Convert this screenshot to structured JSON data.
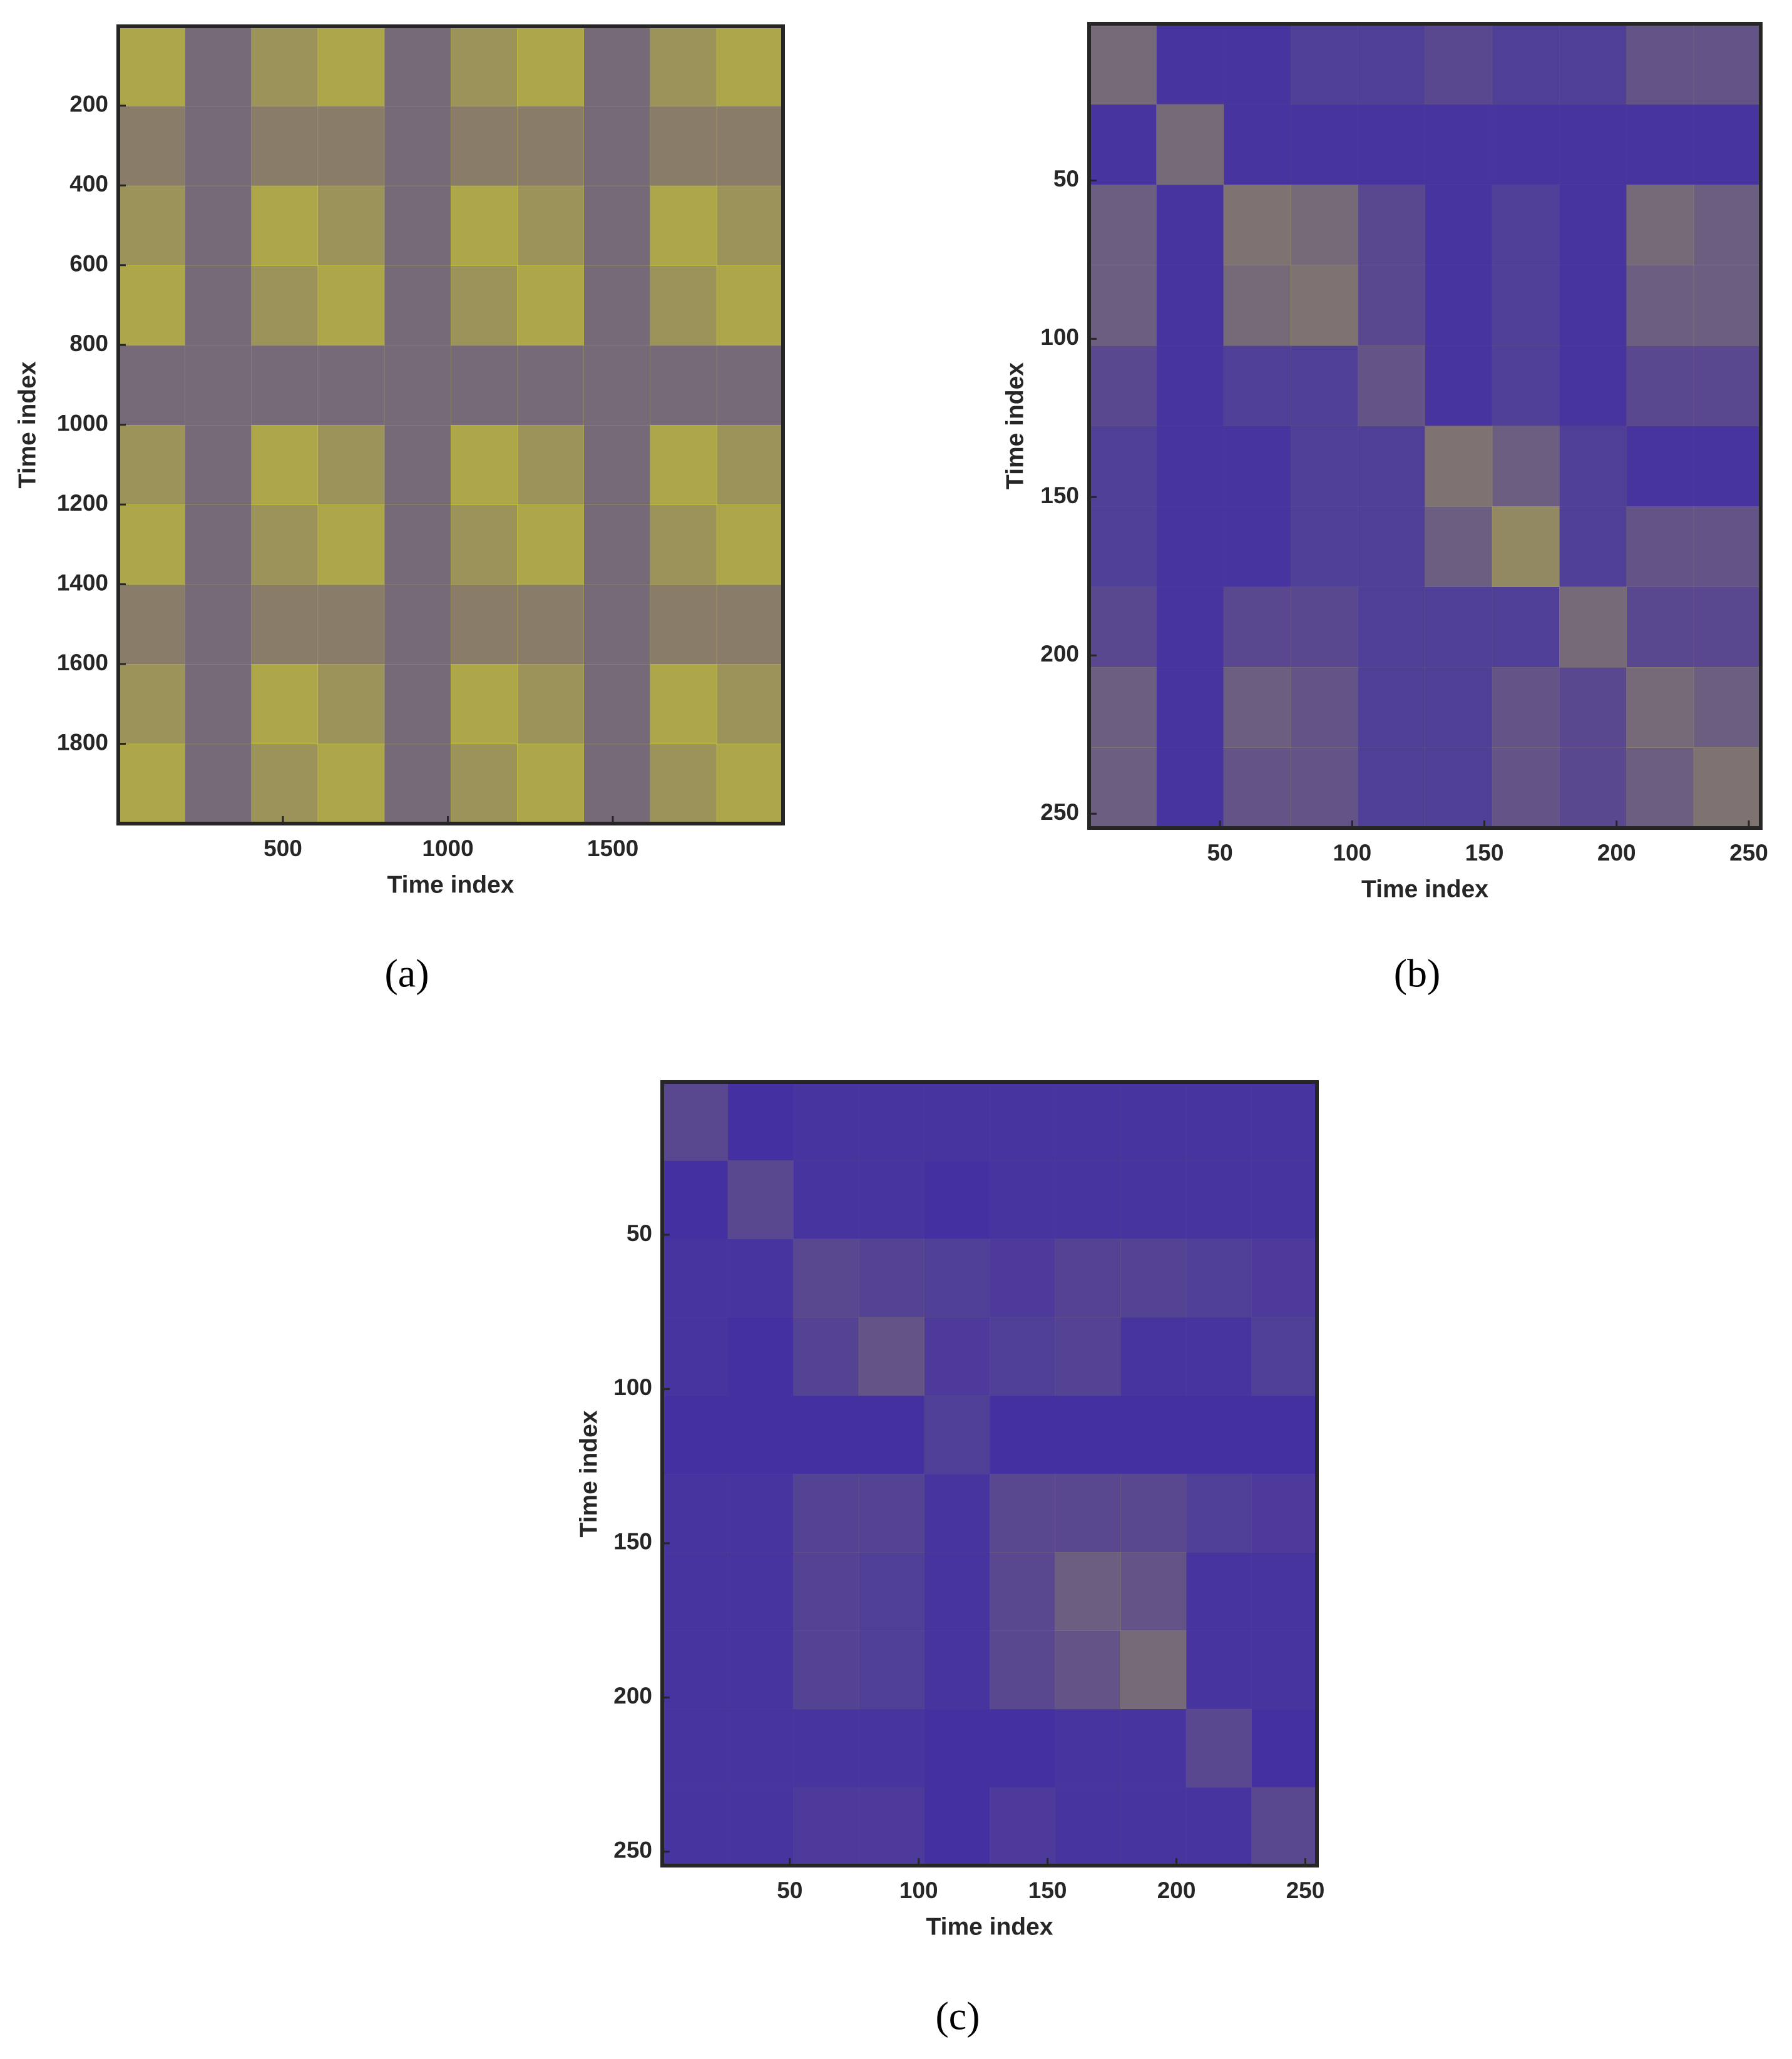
{
  "chart_data": [
    {
      "type": "recurrence",
      "label": "(a)",
      "xlabel": "Time index",
      "ylabel": "Time index",
      "xlim": [
        1,
        2016
      ],
      "ylim": [
        1,
        2000
      ],
      "y_direction": "reverse",
      "xticks": [
        500,
        1000,
        1500
      ],
      "yticks": [
        200,
        400,
        600,
        800,
        1000,
        1200,
        1400,
        1600,
        1800
      ],
      "background": "#3e2aa6",
      "color": "#f9fb0e",
      "values": [
        [
          0.6,
          0.3,
          0.5,
          0.6,
          0.3,
          0.5,
          0.6,
          0.3,
          0.5,
          0.6
        ],
        [
          0.4,
          0.3,
          0.4,
          0.4,
          0.3,
          0.4,
          0.4,
          0.3,
          0.4,
          0.4
        ],
        [
          0.5,
          0.3,
          0.6,
          0.5,
          0.3,
          0.6,
          0.5,
          0.3,
          0.6,
          0.5
        ],
        [
          0.6,
          0.3,
          0.5,
          0.6,
          0.3,
          0.5,
          0.6,
          0.3,
          0.5,
          0.6
        ],
        [
          0.3,
          0.3,
          0.3,
          0.3,
          0.3,
          0.3,
          0.3,
          0.3,
          0.3,
          0.3
        ],
        [
          0.5,
          0.3,
          0.6,
          0.5,
          0.3,
          0.6,
          0.5,
          0.3,
          0.6,
          0.5
        ],
        [
          0.6,
          0.3,
          0.5,
          0.6,
          0.3,
          0.5,
          0.6,
          0.3,
          0.5,
          0.6
        ],
        [
          0.4,
          0.3,
          0.4,
          0.4,
          0.3,
          0.4,
          0.4,
          0.3,
          0.4,
          0.4
        ],
        [
          0.5,
          0.3,
          0.6,
          0.5,
          0.3,
          0.6,
          0.5,
          0.3,
          0.6,
          0.5
        ],
        [
          0.6,
          0.3,
          0.5,
          0.6,
          0.3,
          0.5,
          0.6,
          0.3,
          0.5,
          0.6
        ]
      ]
    },
    {
      "type": "recurrence",
      "label": "(b)",
      "xlabel": "Time index",
      "ylabel": "Time index",
      "xlim": [
        0.5,
        254.5
      ],
      "ylim": [
        0.5,
        254.5
      ],
      "y_direction": "reverse",
      "xticks": [
        50,
        100,
        150,
        200,
        250
      ],
      "yticks": [
        50,
        100,
        150,
        200,
        250
      ],
      "background": "#3e2aa6",
      "color": "#f9fb0e",
      "values": [
        [
          0.3,
          0.05,
          0.05,
          0.1,
          0.1,
          0.15,
          0.1,
          0.1,
          0.2,
          0.2
        ],
        [
          0.05,
          0.3,
          0.05,
          0.05,
          0.05,
          0.05,
          0.05,
          0.05,
          0.05,
          0.05
        ],
        [
          0.25,
          0.05,
          0.35,
          0.3,
          0.15,
          0.05,
          0.1,
          0.05,
          0.3,
          0.25
        ],
        [
          0.25,
          0.05,
          0.3,
          0.35,
          0.15,
          0.05,
          0.1,
          0.05,
          0.25,
          0.25
        ],
        [
          0.15,
          0.05,
          0.1,
          0.1,
          0.2,
          0.05,
          0.1,
          0.05,
          0.15,
          0.15
        ],
        [
          0.1,
          0.05,
          0.05,
          0.1,
          0.1,
          0.35,
          0.25,
          0.1,
          0.05,
          0.05
        ],
        [
          0.1,
          0.05,
          0.05,
          0.1,
          0.1,
          0.25,
          0.45,
          0.1,
          0.2,
          0.2
        ],
        [
          0.15,
          0.05,
          0.15,
          0.15,
          0.1,
          0.1,
          0.1,
          0.3,
          0.15,
          0.15
        ],
        [
          0.25,
          0.05,
          0.25,
          0.2,
          0.1,
          0.1,
          0.2,
          0.15,
          0.3,
          0.25
        ],
        [
          0.25,
          0.05,
          0.2,
          0.2,
          0.1,
          0.1,
          0.2,
          0.15,
          0.25,
          0.35
        ]
      ]
    },
    {
      "type": "recurrence",
      "label": "(c)",
      "xlabel": "Time index",
      "ylabel": "Time index",
      "xlim": [
        0.5,
        254.5
      ],
      "ylim": [
        0.5,
        254.5
      ],
      "y_direction": "reverse",
      "xticks": [
        50,
        100,
        150,
        200,
        250
      ],
      "yticks": [
        50,
        100,
        150,
        200,
        250
      ],
      "background": "#3e2aa6",
      "color": "#f9fb0e",
      "values": [
        [
          0.15,
          0.03,
          0.05,
          0.05,
          0.05,
          0.05,
          0.05,
          0.05,
          0.05,
          0.05
        ],
        [
          0.03,
          0.15,
          0.05,
          0.05,
          0.03,
          0.05,
          0.05,
          0.05,
          0.05,
          0.05
        ],
        [
          0.05,
          0.05,
          0.15,
          0.12,
          0.1,
          0.08,
          0.12,
          0.12,
          0.1,
          0.08
        ],
        [
          0.05,
          0.03,
          0.12,
          0.2,
          0.08,
          0.1,
          0.12,
          0.05,
          0.05,
          0.1
        ],
        [
          0.03,
          0.03,
          0.03,
          0.03,
          0.1,
          0.03,
          0.03,
          0.03,
          0.03,
          0.03
        ],
        [
          0.05,
          0.05,
          0.12,
          0.12,
          0.05,
          0.15,
          0.15,
          0.15,
          0.1,
          0.08
        ],
        [
          0.05,
          0.05,
          0.12,
          0.1,
          0.05,
          0.15,
          0.25,
          0.2,
          0.05,
          0.05
        ],
        [
          0.05,
          0.05,
          0.12,
          0.1,
          0.05,
          0.15,
          0.2,
          0.3,
          0.05,
          0.05
        ],
        [
          0.05,
          0.05,
          0.05,
          0.05,
          0.03,
          0.03,
          0.05,
          0.05,
          0.15,
          0.03
        ],
        [
          0.05,
          0.05,
          0.08,
          0.08,
          0.03,
          0.08,
          0.05,
          0.05,
          0.05,
          0.15
        ]
      ]
    }
  ]
}
